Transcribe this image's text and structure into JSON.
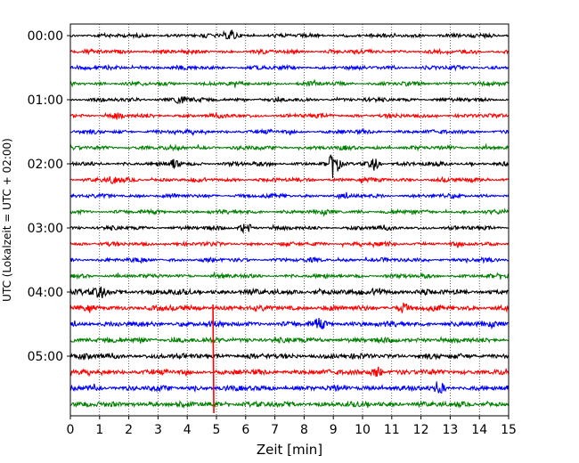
{
  "chart_data": {
    "type": "line",
    "title": "",
    "xlabel": "Zeit  [min]",
    "ylabel": "UTC (Lokalzeit = UTC + 02:00)",
    "xlim": [
      0,
      15
    ],
    "x_ticks": [
      0,
      1,
      2,
      3,
      4,
      5,
      6,
      7,
      8,
      9,
      10,
      11,
      12,
      13,
      14,
      15
    ],
    "x_grid": true,
    "y_ticks": [
      "00:00",
      "01:00",
      "02:00",
      "03:00",
      "04:00",
      "05:00"
    ],
    "trace_interval_min": 15,
    "trace_colors": [
      "#000000",
      "#ff0000",
      "#0000ff",
      "#008000"
    ],
    "traces": [
      {
        "start": "00:00",
        "color": "#000000",
        "events": [
          [
            5.5,
            0.6
          ]
        ]
      },
      {
        "start": "00:15",
        "color": "#ff0000",
        "events": []
      },
      {
        "start": "00:30",
        "color": "#0000ff",
        "events": []
      },
      {
        "start": "00:45",
        "color": "#008000",
        "events": []
      },
      {
        "start": "01:00",
        "color": "#000000",
        "events": [
          [
            3.8,
            0.5
          ]
        ]
      },
      {
        "start": "01:15",
        "color": "#ff0000",
        "events": [
          [
            1.6,
            0.4
          ]
        ]
      },
      {
        "start": "01:30",
        "color": "#0000ff",
        "events": []
      },
      {
        "start": "01:45",
        "color": "#008000",
        "events": []
      },
      {
        "start": "02:00",
        "color": "#000000",
        "events": [
          [
            9.0,
            1.6
          ],
          [
            10.4,
            0.7
          ],
          [
            3.6,
            0.5
          ]
        ]
      },
      {
        "start": "02:15",
        "color": "#ff0000",
        "events": [
          [
            1.5,
            0.5
          ]
        ]
      },
      {
        "start": "02:30",
        "color": "#0000ff",
        "events": []
      },
      {
        "start": "02:45",
        "color": "#008000",
        "events": []
      },
      {
        "start": "03:00",
        "color": "#000000",
        "events": [
          [
            6.0,
            0.6
          ]
        ]
      },
      {
        "start": "03:15",
        "color": "#ff0000",
        "events": []
      },
      {
        "start": "03:30",
        "color": "#0000ff",
        "events": []
      },
      {
        "start": "03:45",
        "color": "#008000",
        "events": []
      },
      {
        "start": "04:00",
        "color": "#000000",
        "events": [
          [
            1.0,
            0.7
          ],
          [
            10.5,
            0.5
          ]
        ]
      },
      {
        "start": "04:15",
        "color": "#ff0000",
        "events": [
          [
            11.4,
            0.5
          ]
        ]
      },
      {
        "start": "04:30",
        "color": "#0000ff",
        "events": [
          [
            8.5,
            0.6
          ]
        ]
      },
      {
        "start": "04:45",
        "color": "#008000",
        "events": []
      },
      {
        "start": "05:00",
        "color": "#000000",
        "events": []
      },
      {
        "start": "05:15",
        "color": "#ff0000",
        "events": [
          [
            10.5,
            0.6
          ]
        ]
      },
      {
        "start": "05:30",
        "color": "#0000ff",
        "events": [
          [
            12.6,
            0.6
          ]
        ]
      },
      {
        "start": "05:45",
        "color": "#008000",
        "events": []
      }
    ],
    "annotations": [
      {
        "type": "vertical-spike",
        "color": "#ff0000",
        "x": 4.88,
        "from_trace": "04:15",
        "to_trace": "05:45"
      }
    ]
  }
}
